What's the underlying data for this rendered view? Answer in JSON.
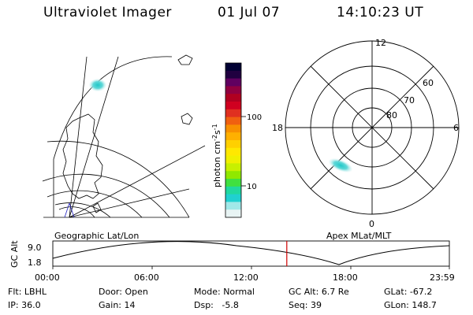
{
  "header": {
    "instrument": "Ultraviolet Imager",
    "date": "01 Jul 07",
    "time": "14:10:23 UT"
  },
  "colorbar": {
    "label": "photon cm",
    "label_sup1": "-2",
    "label_mid": "s",
    "label_sup2": "-1",
    "ticks": [
      "100",
      "10"
    ],
    "colors": [
      "#000033",
      "#200040",
      "#600060",
      "#900040",
      "#b00020",
      "#d00020",
      "#e03020",
      "#f06010",
      "#f89000",
      "#ffb000",
      "#ffd000",
      "#ffe800",
      "#f0f000",
      "#c8f000",
      "#90e800",
      "#40e040",
      "#20d8a0",
      "#20d0d0",
      "#a0e8e8",
      "#e8f4f4"
    ]
  },
  "polar": {
    "lat_labels": [
      "60",
      "70",
      "80"
    ],
    "mlt_labels": {
      "top": "12",
      "left": "18",
      "right": "6",
      "bottom": "0"
    }
  },
  "orbit": {
    "left_title": "Geographic Lat/Lon",
    "right_title": "Apex MLat/MLT",
    "y_axis_label": "GC Alt",
    "y_ticks": [
      "9.0",
      "1.8"
    ],
    "x_ticks": [
      "00:00",
      "06:00",
      "12:00",
      "18:00",
      "23:59"
    ],
    "current_time_fraction": 0.59
  },
  "status": {
    "row1": [
      {
        "label": "Flt:",
        "value": "LBHL"
      },
      {
        "label": "Door:",
        "value": "Open"
      },
      {
        "label": "Mode:",
        "value": "Normal"
      },
      {
        "label": "GC Alt:",
        "value": "6.7 Re"
      },
      {
        "label": "GLat:",
        "value": "-67.2"
      }
    ],
    "row2": [
      {
        "label": "IP:",
        "value": "36.0"
      },
      {
        "label": "Gain:",
        "value": "14"
      },
      {
        "label": "Dsp:",
        "value": "-5.8"
      },
      {
        "label": "Seq:",
        "value": "39"
      },
      {
        "label": "GLon:",
        "value": "148.7"
      }
    ]
  }
}
